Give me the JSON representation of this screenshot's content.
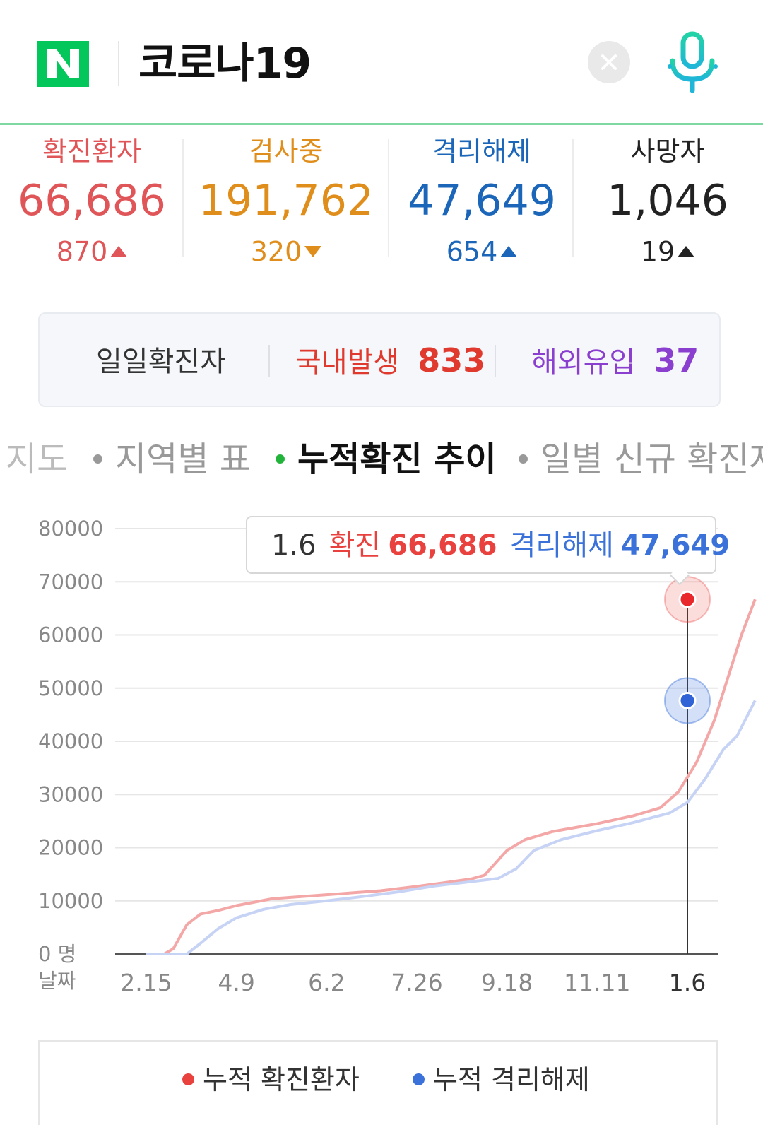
{
  "search": {
    "query": "코로나19"
  },
  "icons": {
    "logo": "naver-logo-icon",
    "clear": "close-icon",
    "mic": "microphone-icon"
  },
  "colors": {
    "brand_green": "#03c75a",
    "confirmed": "#e8413e",
    "testing": "#e08e1b",
    "released": "#1b66b9",
    "deaths": "#222222",
    "overseas": "#8a3fcf"
  },
  "stats": [
    {
      "label": "확진환자",
      "value": "66,686",
      "change": "870",
      "direction": "up"
    },
    {
      "label": "검사중",
      "value": "191,762",
      "change": "320",
      "direction": "down"
    },
    {
      "label": "격리해제",
      "value": "47,649",
      "change": "654",
      "direction": "up"
    },
    {
      "label": "사망자",
      "value": "1,046",
      "change": "19",
      "direction": "up"
    }
  ],
  "daily": {
    "label": "일일확진자",
    "domestic_label": "국내발생",
    "domestic_value": "833",
    "overseas_label": "해외유입",
    "overseas_value": "37"
  },
  "tabs": [
    {
      "label": "지도",
      "active": false
    },
    {
      "label": "지역별 표",
      "active": false
    },
    {
      "label": "누적확진 추이",
      "active": true
    },
    {
      "label": "일별 신규 확진자",
      "active": false
    }
  ],
  "tooltip": {
    "date": "1.6",
    "confirmed_label": "확진",
    "confirmed_value": "66,686",
    "released_label": "격리해제",
    "released_value": "47,649"
  },
  "legend": {
    "confirmed": "누적 확진환자",
    "released": "누적 격리해제"
  },
  "chart_data": {
    "type": "line",
    "ylim": [
      0,
      80000
    ],
    "yticks": [
      "80000",
      "70000",
      "60000",
      "50000",
      "40000",
      "30000",
      "20000",
      "10000",
      "0 명"
    ],
    "x_axis_label": "날짜",
    "xticks": [
      "2.15",
      "4.9",
      "6.2",
      "7.26",
      "9.18",
      "11.11",
      "1.6"
    ],
    "series": [
      {
        "name": "누적 확진환자",
        "color": "#f4a7a7",
        "points": [
          [
            0,
            0
          ],
          [
            0.2,
            0
          ],
          [
            0.3,
            1000
          ],
          [
            0.45,
            5500
          ],
          [
            0.6,
            7500
          ],
          [
            0.8,
            8200
          ],
          [
            1.0,
            9100
          ],
          [
            1.4,
            10400
          ],
          [
            1.8,
            10900
          ],
          [
            2.2,
            11400
          ],
          [
            2.6,
            11900
          ],
          [
            3.0,
            12700
          ],
          [
            3.3,
            13400
          ],
          [
            3.6,
            14100
          ],
          [
            3.75,
            14800
          ],
          [
            4.0,
            19500
          ],
          [
            4.2,
            21500
          ],
          [
            4.5,
            23000
          ],
          [
            5.0,
            24500
          ],
          [
            5.4,
            26000
          ],
          [
            5.7,
            27500
          ],
          [
            5.9,
            30500
          ],
          [
            6.1,
            36000
          ],
          [
            6.3,
            44000
          ],
          [
            6.45,
            52000
          ],
          [
            6.6,
            60000
          ],
          [
            6.75,
            66686
          ]
        ]
      },
      {
        "name": "누적 격리해제",
        "color": "#c6d3f5",
        "points": [
          [
            0,
            0
          ],
          [
            0.45,
            0
          ],
          [
            0.6,
            2000
          ],
          [
            0.8,
            4800
          ],
          [
            1.0,
            6800
          ],
          [
            1.3,
            8400
          ],
          [
            1.6,
            9300
          ],
          [
            2.0,
            10000
          ],
          [
            2.4,
            10800
          ],
          [
            2.8,
            11700
          ],
          [
            3.2,
            12800
          ],
          [
            3.6,
            13600
          ],
          [
            3.9,
            14200
          ],
          [
            4.1,
            16000
          ],
          [
            4.3,
            19500
          ],
          [
            4.6,
            21500
          ],
          [
            5.0,
            23200
          ],
          [
            5.4,
            24700
          ],
          [
            5.8,
            26500
          ],
          [
            6.0,
            28500
          ],
          [
            6.2,
            33000
          ],
          [
            6.4,
            38500
          ],
          [
            6.55,
            41000
          ],
          [
            6.75,
            47649
          ]
        ]
      }
    ],
    "highlight": {
      "x": "1.6",
      "confirmed": 66686,
      "released": 47649
    }
  }
}
